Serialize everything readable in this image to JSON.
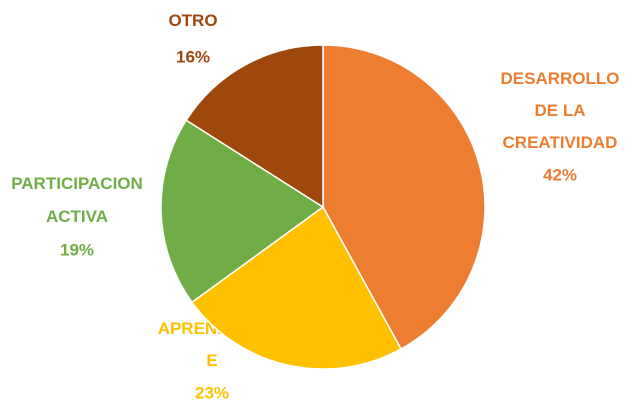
{
  "chart_data": {
    "type": "pie",
    "categories": [
      "DESARROLLO DE LA CREATIVIDAD",
      "APRENDIZAJE",
      "PARTICIPACION ACTIVA",
      "OTRO"
    ],
    "values": [
      42,
      23,
      19,
      16
    ],
    "value_labels": [
      "42%",
      "23%",
      "19%",
      "16%"
    ],
    "colors": [
      "#ED7D31",
      "#FFC000",
      "#70AD47",
      "#9E480E"
    ]
  }
}
